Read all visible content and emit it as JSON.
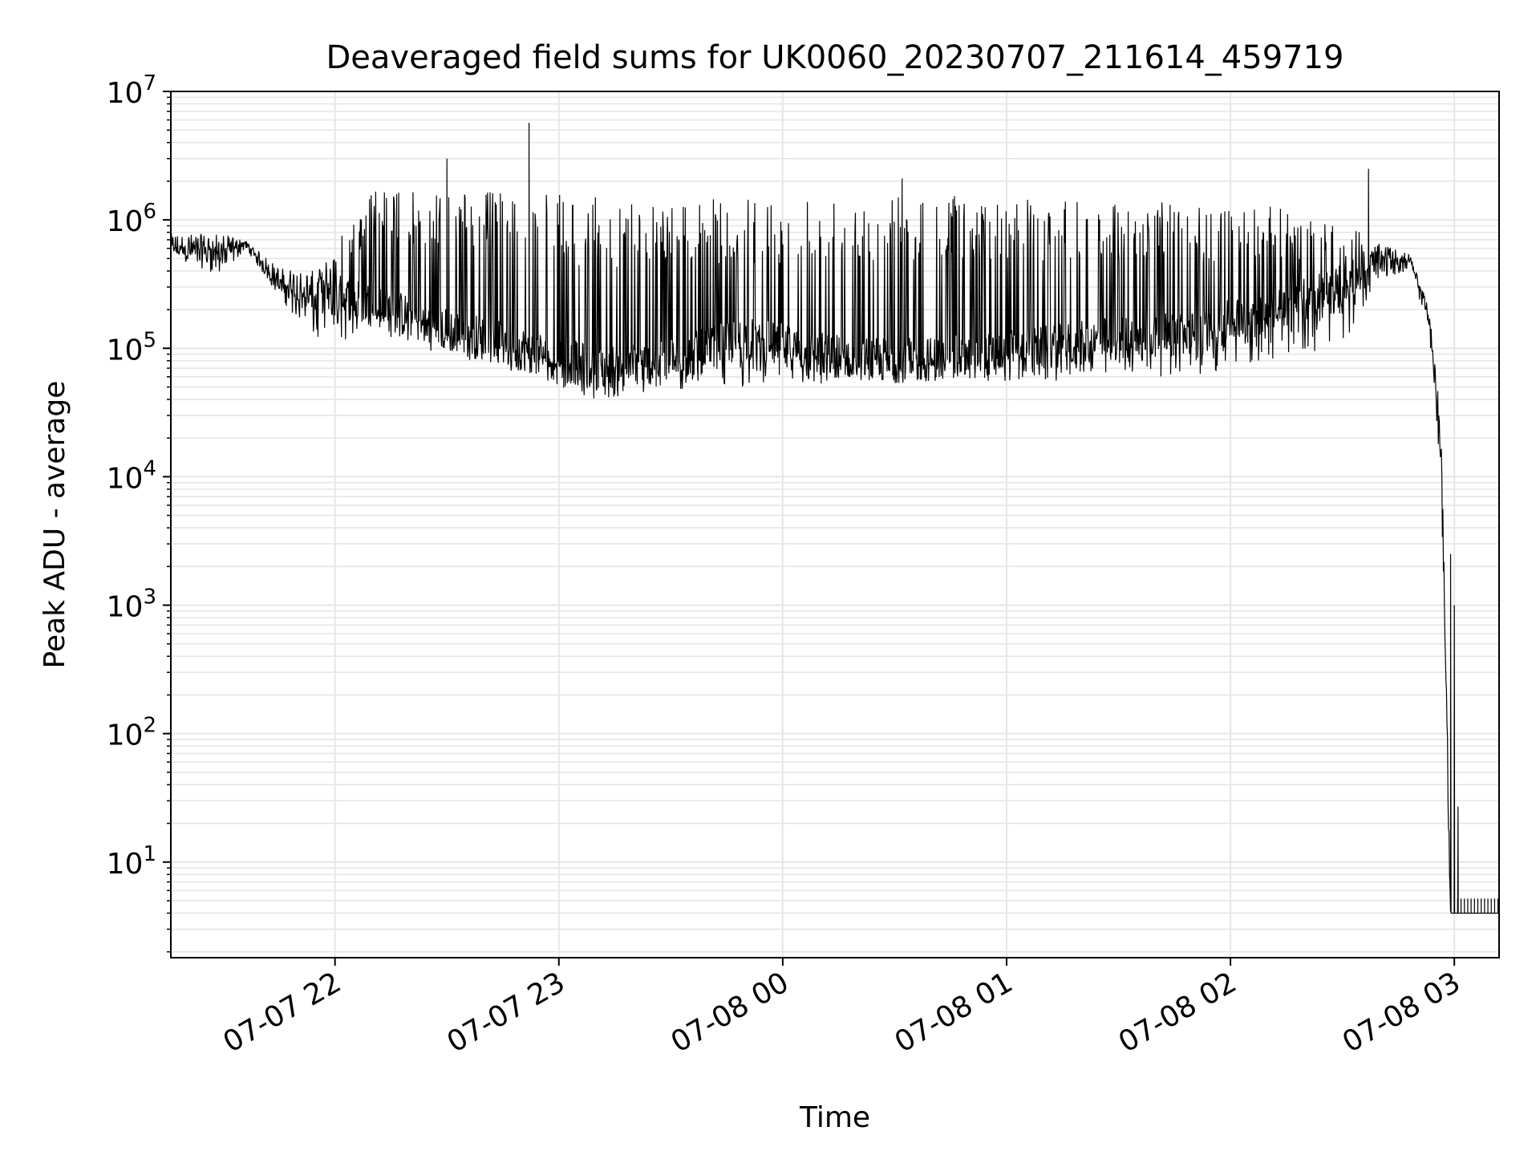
{
  "chart_data": {
    "type": "line",
    "title": "Deaveraged field sums for UK0060_20230707_211614_459719",
    "xlabel": "Time",
    "ylabel": "Peak ADU - average",
    "yscale": "log",
    "ylim": [
      1.8,
      10000000
    ],
    "xlim": [
      "2023-07-07 21:16",
      "2023-07-08 03:12"
    ],
    "grid": true,
    "line_color": "#000000",
    "grid_color": "#e6e6e6",
    "x_ticks": [
      {
        "value": "2023-07-07 22:00",
        "label": "07-07 22"
      },
      {
        "value": "2023-07-07 23:00",
        "label": "07-07 23"
      },
      {
        "value": "2023-07-08 00:00",
        "label": "07-08 00"
      },
      {
        "value": "2023-07-08 01:00",
        "label": "07-08 01"
      },
      {
        "value": "2023-07-08 02:00",
        "label": "07-08 02"
      },
      {
        "value": "2023-07-08 03:00",
        "label": "07-08 03"
      }
    ],
    "y_ticks": [
      {
        "value": 10,
        "base": "10",
        "exp": "1"
      },
      {
        "value": 100,
        "base": "10",
        "exp": "2"
      },
      {
        "value": 1000,
        "base": "10",
        "exp": "3"
      },
      {
        "value": 10000,
        "base": "10",
        "exp": "4"
      },
      {
        "value": 100000,
        "base": "10",
        "exp": "5"
      },
      {
        "value": 1000000,
        "base": "10",
        "exp": "6"
      },
      {
        "value": 10000000,
        "base": "10",
        "exp": "7"
      }
    ],
    "series": [
      {
        "envelope": [
          {
            "t": "2023-07-07 21:16",
            "upper": 1100000,
            "baseline": 650000,
            "lower": 520000
          },
          {
            "t": "2023-07-07 21:30",
            "upper": 870000,
            "baseline": 620000,
            "lower": 360000
          },
          {
            "t": "2023-07-07 21:36",
            "upper": 740000,
            "baseline": 660000,
            "lower": 600000
          },
          {
            "t": "2023-07-07 21:45",
            "upper": 550000,
            "baseline": 350000,
            "lower": 250000
          },
          {
            "t": "2023-07-07 21:55",
            "upper": 450000,
            "baseline": 280000,
            "lower": 110000
          },
          {
            "t": "2023-07-07 22:10",
            "upper": 1700000,
            "baseline": 220000,
            "lower": 120000
          },
          {
            "t": "2023-07-07 22:30",
            "upper": 1700000,
            "baseline": 140000,
            "lower": 90000
          },
          {
            "t": "2023-07-07 22:50",
            "upper": 1650000,
            "baseline": 100000,
            "lower": 60000
          },
          {
            "t": "2023-07-07 23:10",
            "upper": 1500000,
            "baseline": 70000,
            "lower": 40000
          },
          {
            "t": "2023-07-07 23:30",
            "upper": 1450000,
            "baseline": 80000,
            "lower": 45000
          },
          {
            "t": "2023-07-07 23:50",
            "upper": 1450000,
            "baseline": 120000,
            "lower": 50000
          },
          {
            "t": "2023-07-08 00:10",
            "upper": 1550000,
            "baseline": 90000,
            "lower": 50000
          },
          {
            "t": "2023-07-08 00:30",
            "upper": 1600000,
            "baseline": 80000,
            "lower": 55000
          },
          {
            "t": "2023-07-08 00:50",
            "upper": 1550000,
            "baseline": 85000,
            "lower": 55000
          },
          {
            "t": "2023-07-08 01:10",
            "upper": 1500000,
            "baseline": 100000,
            "lower": 55000
          },
          {
            "t": "2023-07-08 01:30",
            "upper": 1400000,
            "baseline": 120000,
            "lower": 60000
          },
          {
            "t": "2023-07-08 01:50",
            "upper": 1350000,
            "baseline": 130000,
            "lower": 60000
          },
          {
            "t": "2023-07-08 02:10",
            "upper": 1300000,
            "baseline": 200000,
            "lower": 80000
          },
          {
            "t": "2023-07-08 02:30",
            "upper": 900000,
            "baseline": 300000,
            "lower": 100000
          },
          {
            "t": "2023-07-08 02:40",
            "upper": 700000,
            "baseline": 550000,
            "lower": 350000
          },
          {
            "t": "2023-07-08 02:48",
            "upper": 560000,
            "baseline": 500000,
            "lower": 400000
          },
          {
            "t": "2023-07-08 02:53",
            "upper": 250000,
            "baseline": 200000,
            "lower": 150000
          },
          {
            "t": "2023-07-08 02:55",
            "upper": 80000,
            "baseline": 60000,
            "lower": 40000
          },
          {
            "t": "2023-07-08 02:56",
            "upper": 40000,
            "baseline": 25000,
            "lower": 10000
          },
          {
            "t": "2023-07-08 02:57",
            "upper": 10000,
            "baseline": 5000,
            "lower": 2000
          },
          {
            "t": "2023-07-08 02:58",
            "upper": 300,
            "baseline": 100,
            "lower": 20
          },
          {
            "t": "2023-07-08 02:59",
            "upper": 4,
            "baseline": 4,
            "lower": 4
          },
          {
            "t": "2023-07-08 03:12",
            "upper": 4,
            "baseline": 4,
            "lower": 4
          }
        ],
        "peaks": [
          {
            "t": "2023-07-07 22:30",
            "value": 3000000
          },
          {
            "t": "2023-07-07 22:52",
            "value": 5700000
          },
          {
            "t": "2023-07-08 00:32",
            "value": 2100000
          },
          {
            "t": "2023-07-08 02:37",
            "value": 2500000
          },
          {
            "t": "2023-07-08 02:59",
            "value": 2500
          },
          {
            "t": "2023-07-08 03:00",
            "value": 1000
          },
          {
            "t": "2023-07-08 03:01",
            "value": 27
          }
        ]
      }
    ]
  }
}
